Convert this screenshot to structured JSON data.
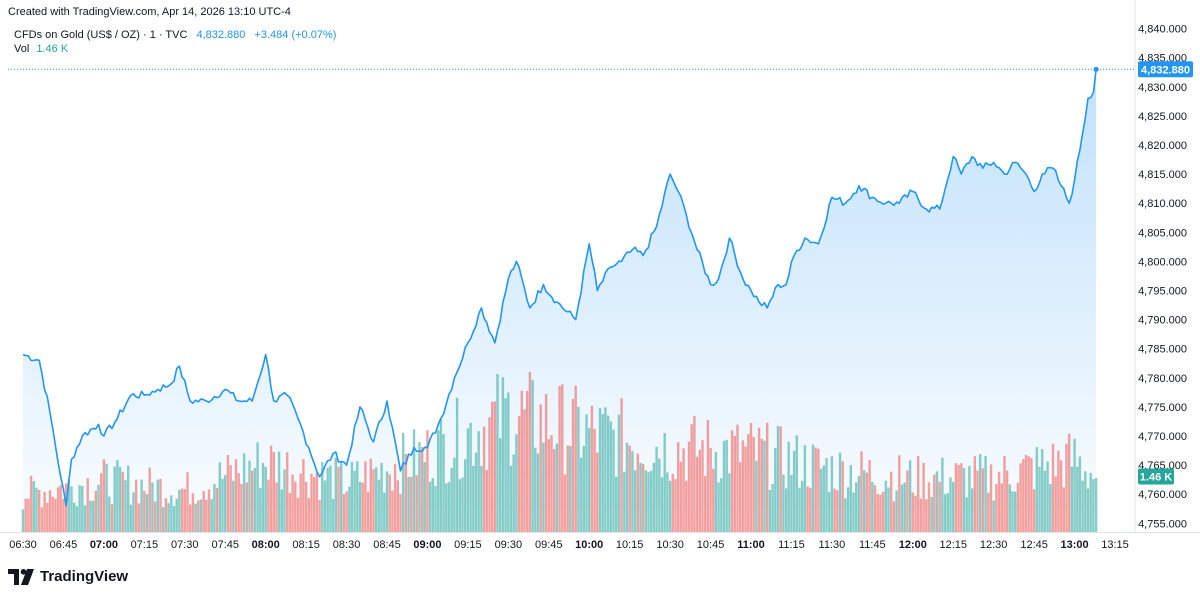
{
  "credit": "Created with TradingView.com, Apr 14, 2026 13:10 UTC-4",
  "legend": {
    "symbol": "CFDs on Gold (US$ / OZ) · 1 · TVC",
    "last": "4,832.880",
    "change": "+3.484 (+0.07%)",
    "vol_label": "Vol",
    "vol_value": "1.46 K"
  },
  "price_tag": "4,832.880",
  "volume_tag": "1.46 K",
  "brand": "TradingView",
  "colors": {
    "line": "#2196f3",
    "up_volume": "#26a69a",
    "down_volume": "#ef5350",
    "area": "#2196f3"
  },
  "chart_data": {
    "type": "area",
    "title": "CFDs on Gold (US$ / OZ) · 1 · TVC",
    "x_ticks": [
      "06:30",
      "06:45",
      "07:00",
      "07:15",
      "07:30",
      "07:45",
      "08:00",
      "08:15",
      "08:30",
      "08:45",
      "09:00",
      "09:15",
      "09:30",
      "09:45",
      "10:00",
      "10:15",
      "10:30",
      "10:45",
      "11:00",
      "11:15",
      "11:30",
      "11:45",
      "12:00",
      "12:15",
      "12:30",
      "12:45",
      "13:00",
      "13:15"
    ],
    "x_ticks_bold": [
      "07:00",
      "08:00",
      "09:00",
      "10:00",
      "11:00",
      "12:00",
      "13:00"
    ],
    "y_ticks": [
      "4,840.000",
      "4,835.000",
      "4,830.000",
      "4,825.000",
      "4,820.000",
      "4,815.000",
      "4,810.000",
      "4,805.000",
      "4,800.000",
      "4,795.000",
      "4,790.000",
      "4,785.000",
      "4,780.000",
      "4,775.000",
      "4,770.000",
      "4,765.000",
      "4,760.000",
      "4,755.000"
    ],
    "ylim": [
      4753.5,
      4842.5
    ],
    "grid": false,
    "series": [
      {
        "name": "CFDs on Gold (US$ / OZ)",
        "points": [
          [
            "06:30",
            4784
          ],
          [
            "06:36",
            4783
          ],
          [
            "06:40",
            4774
          ],
          [
            "06:44",
            4763
          ],
          [
            "06:46",
            4758
          ],
          [
            "06:48",
            4766
          ],
          [
            "06:52",
            4770
          ],
          [
            "06:58",
            4772
          ],
          [
            "07:00",
            4770
          ],
          [
            "07:05",
            4773
          ],
          [
            "07:10",
            4777
          ],
          [
            "07:15",
            4777
          ],
          [
            "07:20",
            4778
          ],
          [
            "07:25",
            4779
          ],
          [
            "07:28",
            4782
          ],
          [
            "07:32",
            4776
          ],
          [
            "07:38",
            4776
          ],
          [
            "07:45",
            4778
          ],
          [
            "07:50",
            4776
          ],
          [
            "07:55",
            4776
          ],
          [
            "08:00",
            4784
          ],
          [
            "08:03",
            4776
          ],
          [
            "08:08",
            4777
          ],
          [
            "08:12",
            4773
          ],
          [
            "08:16",
            4768
          ],
          [
            "08:20",
            4763
          ],
          [
            "08:25",
            4767
          ],
          [
            "08:30",
            4765
          ],
          [
            "08:35",
            4775
          ],
          [
            "08:40",
            4769
          ],
          [
            "08:45",
            4776
          ],
          [
            "08:50",
            4764
          ],
          [
            "08:55",
            4768
          ],
          [
            "09:00",
            4768
          ],
          [
            "09:05",
            4773
          ],
          [
            "09:10",
            4780
          ],
          [
            "09:15",
            4786
          ],
          [
            "09:20",
            4792
          ],
          [
            "09:25",
            4786
          ],
          [
            "09:30",
            4797
          ],
          [
            "09:33",
            4800
          ],
          [
            "09:38",
            4792
          ],
          [
            "09:43",
            4796
          ],
          [
            "09:48",
            4793
          ],
          [
            "09:55",
            4790
          ],
          [
            "10:00",
            4803
          ],
          [
            "10:03",
            4795
          ],
          [
            "10:08",
            4799
          ],
          [
            "10:12",
            4800
          ],
          [
            "10:16",
            4802
          ],
          [
            "10:20",
            4801
          ],
          [
            "10:25",
            4806
          ],
          [
            "10:30",
            4815
          ],
          [
            "10:33",
            4812
          ],
          [
            "10:36",
            4808
          ],
          [
            "10:40",
            4802
          ],
          [
            "10:45",
            4796
          ],
          [
            "10:48",
            4797
          ],
          [
            "10:52",
            4804
          ],
          [
            "10:57",
            4797
          ],
          [
            "11:00",
            4795
          ],
          [
            "11:03",
            4793
          ],
          [
            "11:06",
            4792
          ],
          [
            "11:10",
            4796
          ],
          [
            "11:13",
            4796
          ],
          [
            "11:16",
            4801
          ],
          [
            "11:20",
            4804
          ],
          [
            "11:25",
            4803
          ],
          [
            "11:30",
            4811
          ],
          [
            "11:35",
            4810
          ],
          [
            "11:40",
            4813
          ],
          [
            "11:45",
            4811
          ],
          [
            "11:50",
            4810
          ],
          [
            "11:55",
            4810
          ],
          [
            "12:00",
            4812
          ],
          [
            "12:05",
            4809
          ],
          [
            "12:10",
            4809
          ],
          [
            "12:15",
            4818
          ],
          [
            "12:18",
            4815
          ],
          [
            "12:22",
            4818
          ],
          [
            "12:26",
            4816
          ],
          [
            "12:30",
            4817
          ],
          [
            "12:34",
            4815
          ],
          [
            "12:38",
            4817
          ],
          [
            "12:42",
            4815
          ],
          [
            "12:45",
            4812
          ],
          [
            "12:48",
            4815
          ],
          [
            "12:52",
            4816
          ],
          [
            "12:55",
            4813
          ],
          [
            "12:58",
            4810
          ],
          [
            "13:00",
            4814
          ],
          [
            "13:03",
            4822
          ],
          [
            "13:05",
            4828
          ],
          [
            "13:07",
            4829
          ],
          [
            "13:08",
            4833
          ]
        ]
      }
    ],
    "volume": [
      {
        "times": [
          "06:30",
          "07:00",
          "07:30",
          "08:00",
          "08:30",
          "09:00",
          "09:30",
          "10:00",
          "10:30",
          "11:00",
          "11:30",
          "12:00",
          "12:30",
          "13:00",
          "13:08"
        ],
        "values": [
          1.0,
          1.35,
          1.1,
          1.85,
          1.3,
          2.05,
          3.1,
          2.6,
          2.2,
          2.1,
          1.65,
          1.4,
          1.45,
          1.9,
          1.46
        ]
      }
    ]
  }
}
